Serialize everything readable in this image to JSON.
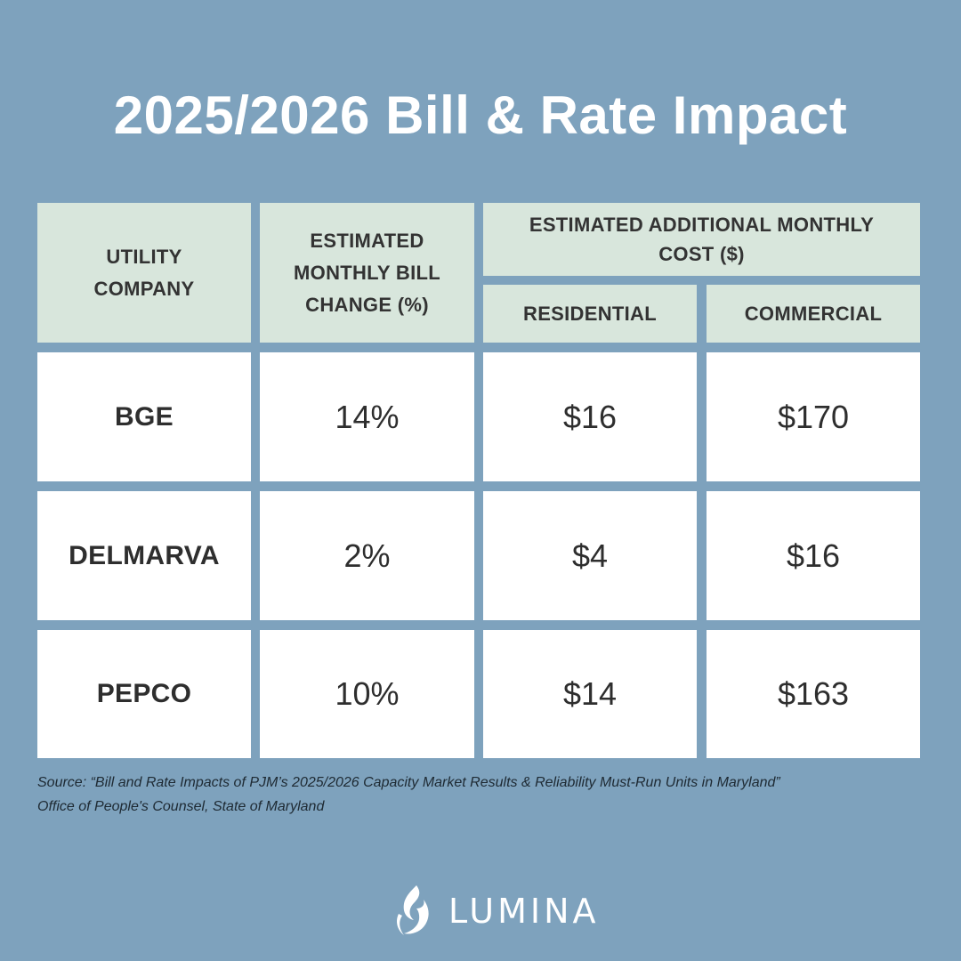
{
  "title": "2025/2026 Bill & Rate Impact",
  "table": {
    "headers": {
      "company": "UTILITY COMPANY",
      "bill_change": "ESTIMATED MONTHLY BILL CHANGE (%)",
      "additional_cost": "ESTIMATED ADDITIONAL MONTHLY COST ($)",
      "residential": "RESIDENTIAL",
      "commercial": "COMMERCIAL"
    },
    "rows": [
      {
        "company": "BGE",
        "bill_change": "14%",
        "residential": "$16",
        "commercial": "$170"
      },
      {
        "company": "DELMARVA",
        "bill_change": "2%",
        "residential": "$4",
        "commercial": "$16"
      },
      {
        "company": "PEPCO",
        "bill_change": "10%",
        "residential": "$14",
        "commercial": "$163"
      }
    ]
  },
  "source": {
    "line1": "Source: “Bill and Rate Impacts of PJM’s 2025/2026 Capacity Market Results & Reliability Must-Run Units in Maryland”",
    "line2": "Office of People's Counsel, State of Maryland"
  },
  "logo": {
    "text": "LUMINA",
    "icon": "flame-icon"
  },
  "colors": {
    "background": "#7ea2bd",
    "header_cell": "#d8e6dc",
    "body_cell": "#ffffff",
    "title_text": "#ffffff"
  }
}
